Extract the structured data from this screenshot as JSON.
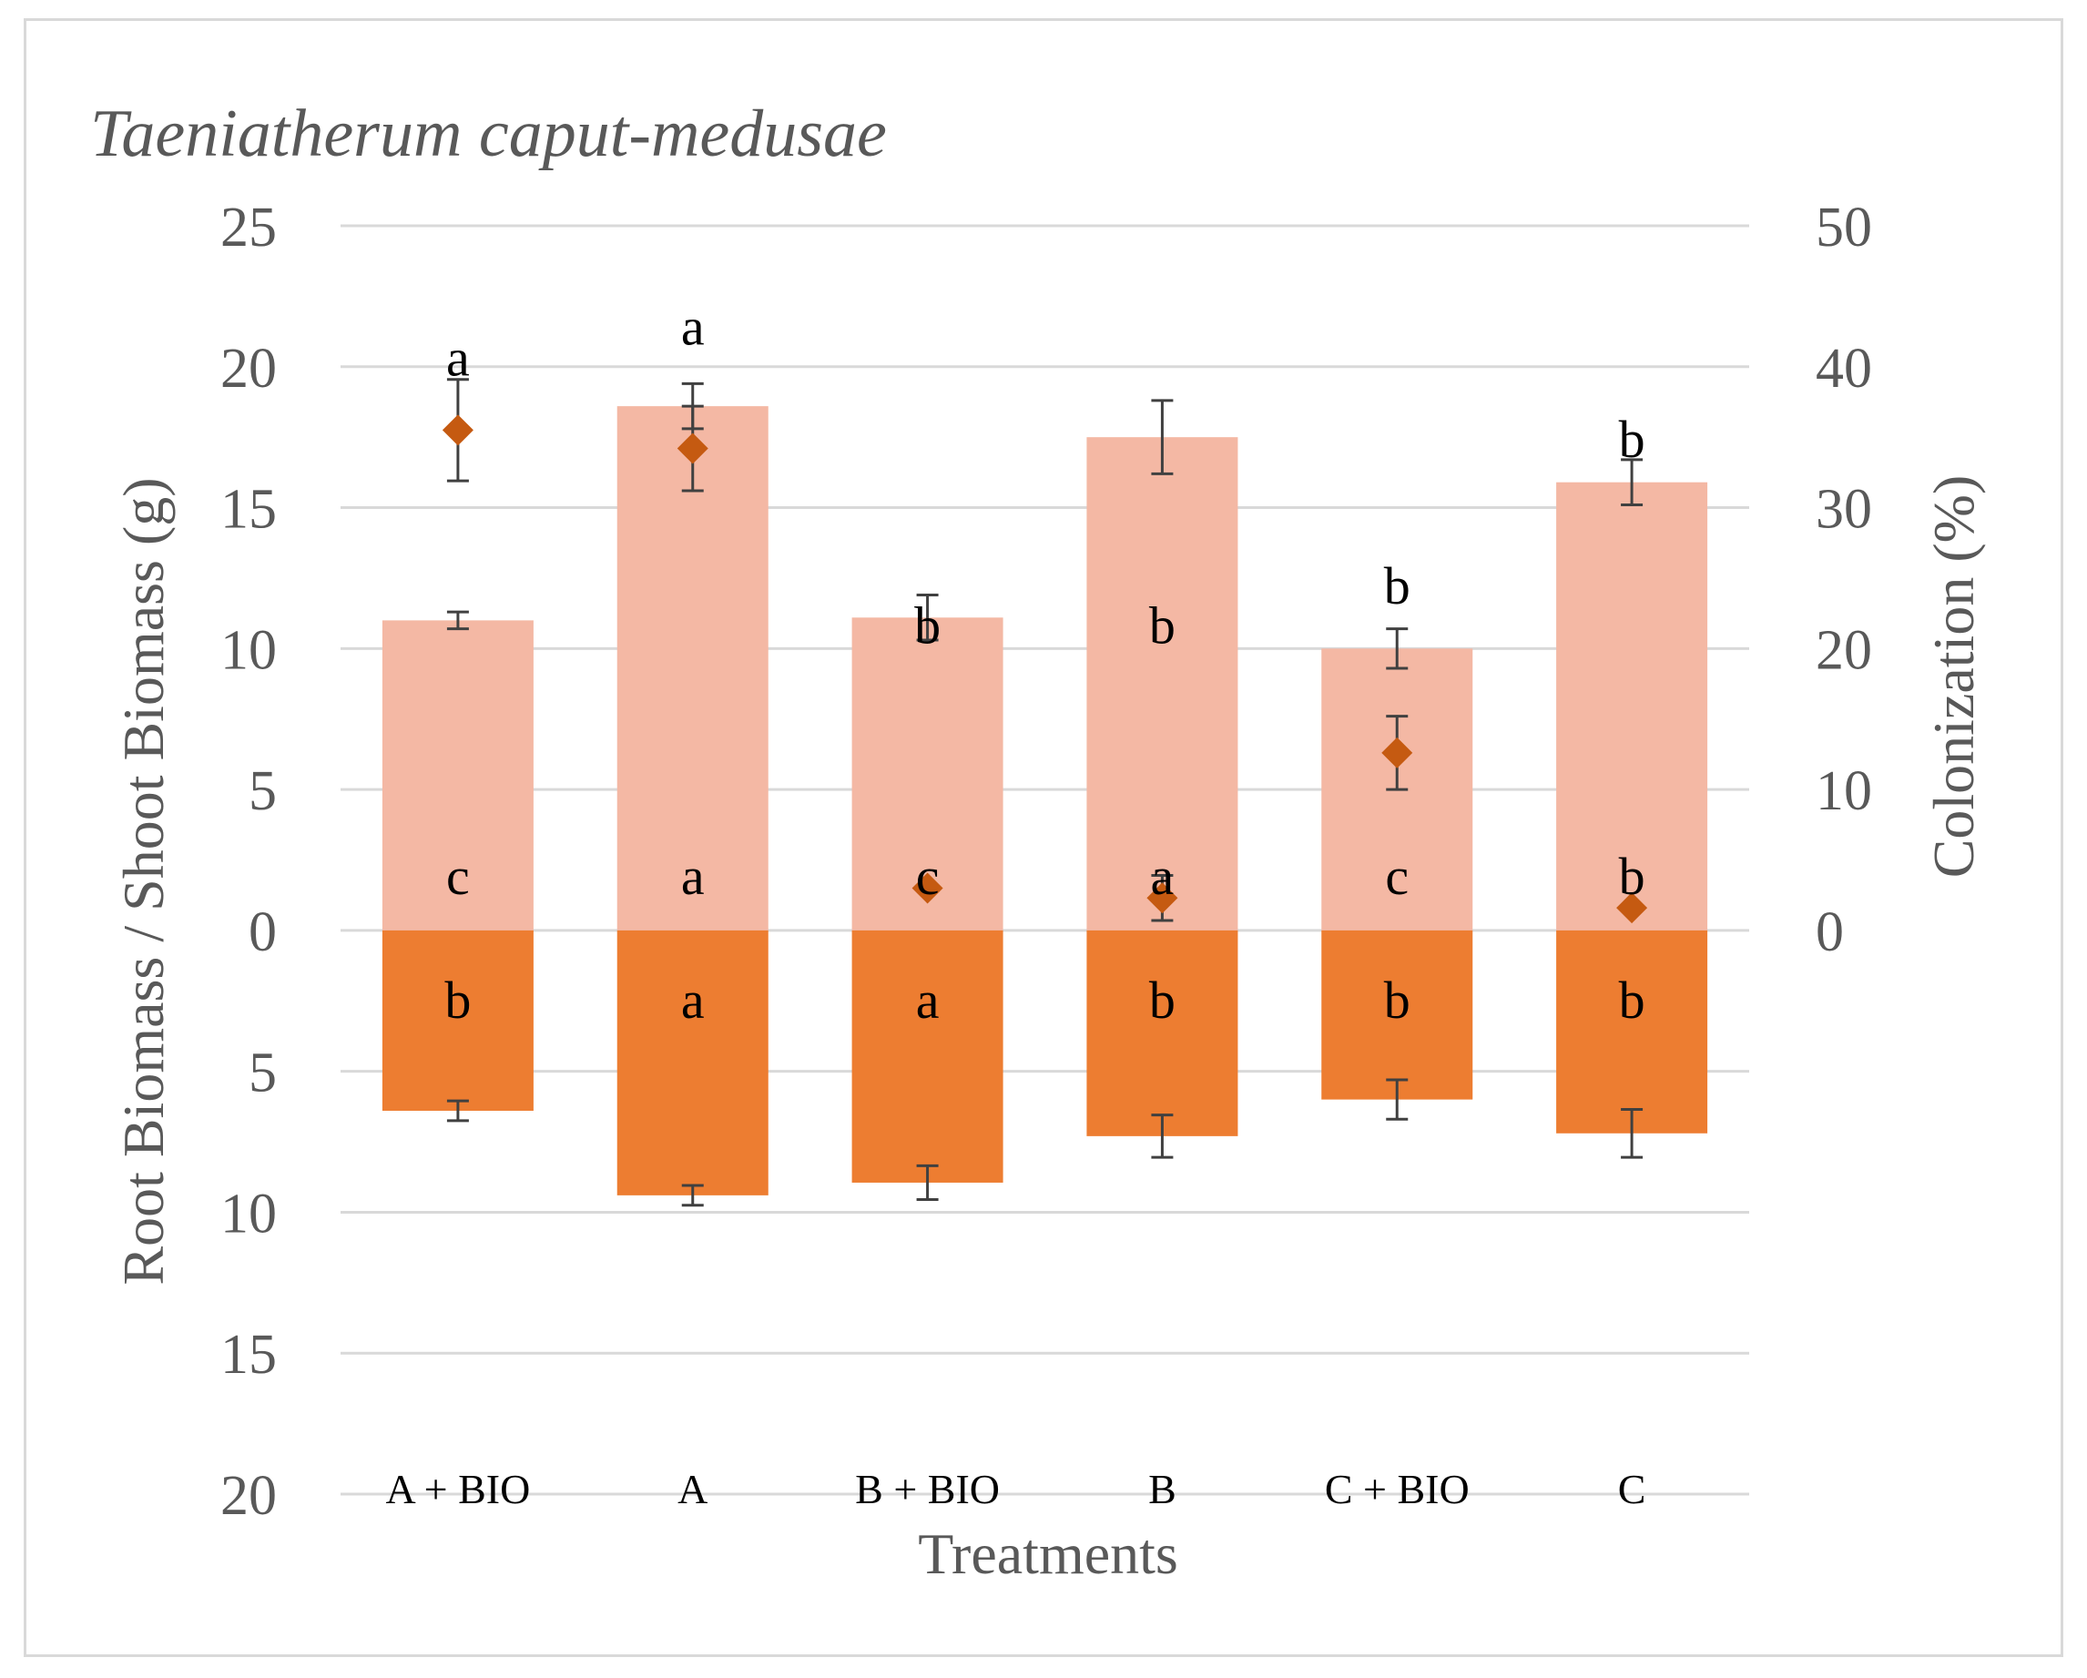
{
  "chart_data": {
    "type": "bar",
    "title": "Taeniatherum caput-medusae",
    "xlabel": "Treatments",
    "ylabel": "Root Biomass / Shoot Biomass (g)",
    "y2label": "Colonization (%)",
    "categories": [
      "A + BIO",
      "A",
      "B + BIO",
      "B",
      "C + BIO",
      "C"
    ],
    "ylim": [
      -20,
      25
    ],
    "y_ticks": [
      25,
      20,
      15,
      10,
      5,
      0,
      -5,
      -10,
      -15,
      -20
    ],
    "y_tick_labels": [
      "25",
      "20",
      "15",
      "10",
      "5",
      "0",
      "5",
      "10",
      "15",
      "20"
    ],
    "y2lim": [
      0,
      50
    ],
    "y2_ticks": [
      50,
      40,
      30,
      20,
      10,
      0
    ],
    "y2_tick_labels": [
      "50",
      "40",
      "30",
      "20",
      "10",
      "0"
    ],
    "grid": true,
    "colors": {
      "shoot": "#f4b8a4",
      "root": "#ed7d31",
      "colonization": "#c55a11",
      "grid": "#d9d9d9",
      "error": "#404040"
    },
    "series": [
      {
        "name": "Shoot Biomass",
        "axis": "left",
        "values": [
          11.0,
          18.6,
          11.1,
          17.5,
          10.0,
          15.9
        ],
        "errors": [
          0.3,
          0.8,
          0.8,
          1.3,
          0.7,
          0.8
        ],
        "sig_labels": [
          "c",
          "a",
          "c",
          "a",
          "c",
          "b"
        ],
        "sig_label_y": [
          2.0,
          2.0,
          2.0,
          2.0,
          2.0,
          2.0
        ]
      },
      {
        "name": "Root Biomass",
        "axis": "left",
        "values": [
          -6.4,
          -9.4,
          -8.95,
          -7.3,
          -6.0,
          -7.2
        ],
        "errors": [
          0.35,
          0.35,
          0.6,
          0.75,
          0.7,
          0.85
        ],
        "sig_labels": [
          "b",
          "a",
          "a",
          "b",
          "b",
          "b"
        ],
        "sig_label_y": [
          -2.4,
          -2.4,
          -2.4,
          -2.4,
          -2.4,
          -2.4
        ]
      },
      {
        "name": "Colonization",
        "axis": "right",
        "type": "scatter",
        "values": [
          35.5,
          34.2,
          3.0,
          2.3,
          12.6,
          1.6
        ],
        "errors": [
          3.6,
          3.0,
          0.0,
          1.6,
          2.6,
          0.0
        ],
        "sig_labels": [
          "a",
          "a",
          "b",
          "b",
          "b",
          "b"
        ],
        "sig_label_y": [
          40.8,
          43.0,
          21.8,
          21.8,
          24.6,
          35.0
        ]
      }
    ]
  }
}
